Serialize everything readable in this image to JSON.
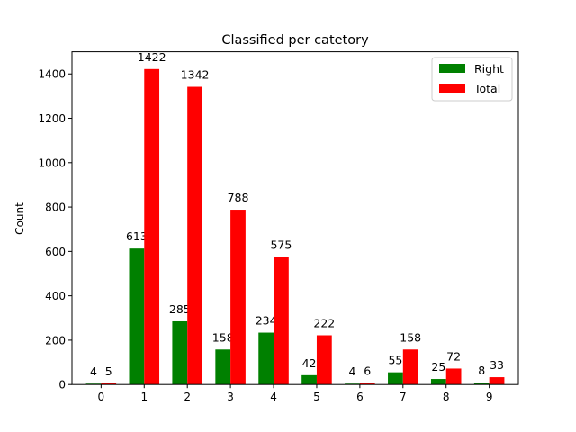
{
  "chart_data": {
    "type": "bar",
    "title": "Classified per catetory",
    "xlabel": "",
    "ylabel": "Count",
    "categories": [
      "0",
      "1",
      "2",
      "3",
      "4",
      "5",
      "6",
      "7",
      "8",
      "9"
    ],
    "series": [
      {
        "name": "Right",
        "color": "#008000",
        "values": [
          4,
          613,
          285,
          158,
          234,
          42,
          4,
          55,
          25,
          8
        ]
      },
      {
        "name": "Total",
        "color": "#ff0000",
        "values": [
          5,
          1422,
          1342,
          788,
          575,
          222,
          6,
          158,
          72,
          33
        ]
      }
    ],
    "ylim": [
      0,
      1500
    ],
    "yticks": [
      0,
      200,
      400,
      600,
      800,
      1000,
      1200,
      1400
    ],
    "grid": false,
    "legend_position": "top-right"
  }
}
